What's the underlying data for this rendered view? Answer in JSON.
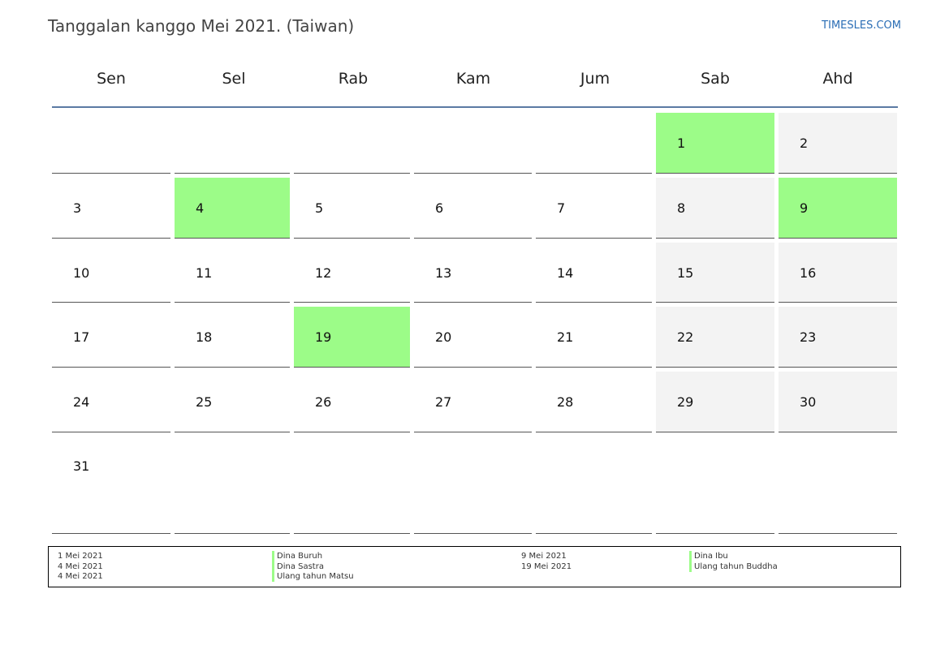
{
  "header": {
    "title": "Tanggalan kanggo Mei 2021. (Taiwan)",
    "brand": "TIMESLES.COM"
  },
  "weekdays": [
    "Sen",
    "Sel",
    "Rab",
    "Kam",
    "Jum",
    "Sab",
    "Ahd"
  ],
  "days": {
    "d1": "1",
    "d2": "2",
    "d3": "3",
    "d4": "4",
    "d5": "5",
    "d6": "6",
    "d7": "7",
    "d8": "8",
    "d9": "9",
    "d10": "10",
    "d11": "11",
    "d12": "12",
    "d13": "13",
    "d14": "14",
    "d15": "15",
    "d16": "16",
    "d17": "17",
    "d18": "18",
    "d19": "19",
    "d20": "20",
    "d21": "21",
    "d22": "22",
    "d23": "23",
    "d24": "24",
    "d25": "25",
    "d26": "26",
    "d27": "27",
    "d28": "28",
    "d29": "29",
    "d30": "30",
    "d31": "31"
  },
  "holidays": [
    {
      "date": "1 Mei 2021",
      "name": "Dina Buruh"
    },
    {
      "date": "4 Mei 2021",
      "name": "Dina Sastra"
    },
    {
      "date": "4 Mei 2021",
      "name": "Ulang tahun Matsu"
    },
    {
      "date": "9 Mei 2021",
      "name": "Dina Ibu"
    },
    {
      "date": "19 Mei 2021",
      "name": "Ulang tahun Buddha"
    }
  ],
  "colors": {
    "holiday": "#9cfc88",
    "weekend": "#f3f3f3",
    "header_rule": "#5b7aa3",
    "brand": "#2a6db5"
  }
}
